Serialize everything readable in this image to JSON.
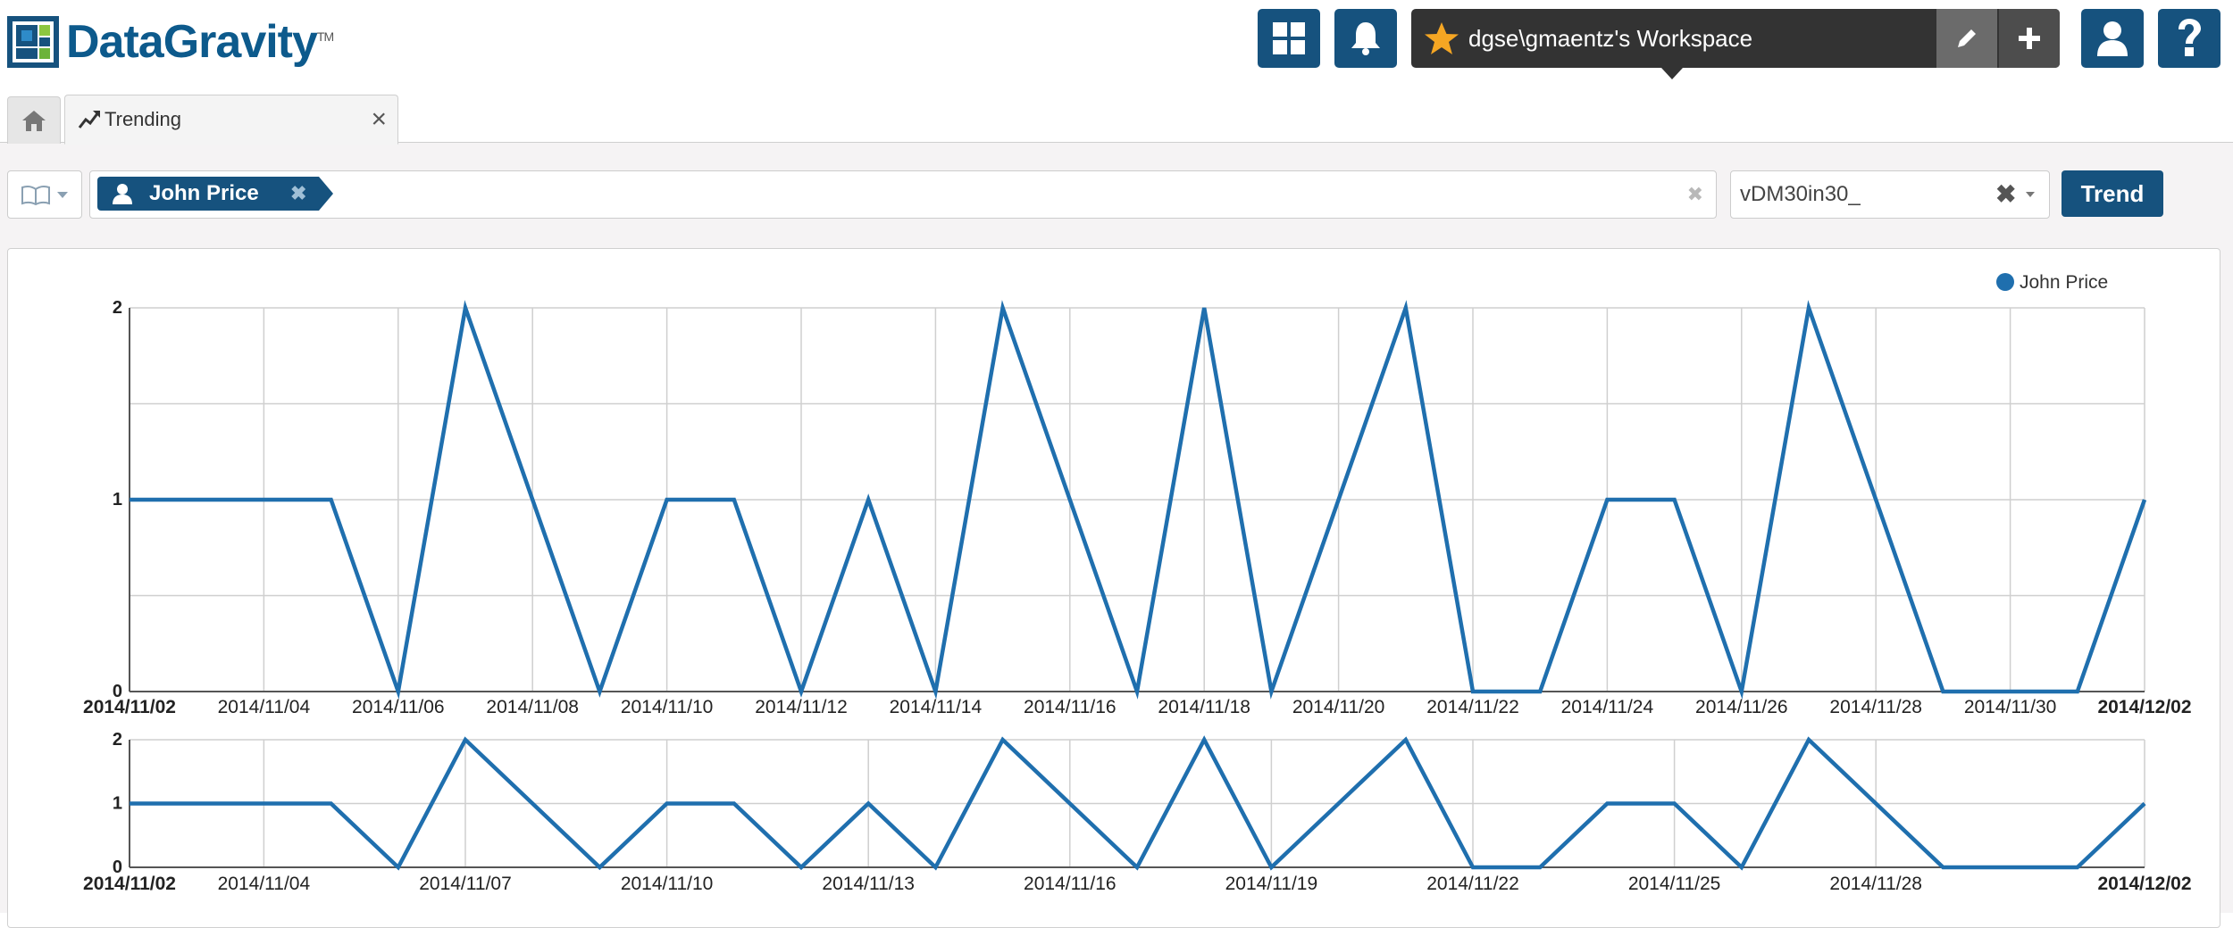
{
  "header": {
    "logo_text": "DataGravity",
    "logo_mark": "TM",
    "workspace_name": "dgse\\gmaentz's Workspace"
  },
  "icons": {
    "dashboard": "grid-icon",
    "notifications": "bell-icon",
    "favorite": "star-icon",
    "edit": "pencil-icon",
    "add": "plus-icon",
    "user": "user-icon",
    "help": "question-icon"
  },
  "tabs": [
    {
      "icon": "home-icon",
      "label": ""
    },
    {
      "icon": "trending-icon",
      "label": "Trending",
      "closable": true
    }
  ],
  "filter": {
    "chip_label": "John Price",
    "select_value": "vDM30in30_",
    "trend_button": "Trend"
  },
  "colors": {
    "brand": "#16527e",
    "series": "#1f6fae",
    "star": "#f5a623"
  },
  "chart_data": [
    {
      "type": "line",
      "legend": [
        "John Price"
      ],
      "legend_position": "top-right",
      "grid": true,
      "x": [
        "2014/11/02",
        "2014/11/03",
        "2014/11/04",
        "2014/11/05",
        "2014/11/06",
        "2014/11/07",
        "2014/11/08",
        "2014/11/09",
        "2014/11/10",
        "2014/11/11",
        "2014/11/12",
        "2014/11/13",
        "2014/11/14",
        "2014/11/15",
        "2014/11/16",
        "2014/11/17",
        "2014/11/18",
        "2014/11/19",
        "2014/11/20",
        "2014/11/21",
        "2014/11/22",
        "2014/11/23",
        "2014/11/24",
        "2014/11/25",
        "2014/11/26",
        "2014/11/27",
        "2014/11/28",
        "2014/11/29",
        "2014/11/30",
        "2014/12/01",
        "2014/12/02"
      ],
      "series": [
        {
          "name": "John Price",
          "values": [
            1,
            1,
            1,
            1,
            0,
            2,
            1,
            0,
            1,
            1,
            0,
            1,
            0,
            2,
            1,
            0,
            2,
            0,
            1,
            2,
            0,
            0,
            1,
            1,
            0,
            2,
            1,
            0,
            0,
            0,
            1
          ]
        }
      ],
      "ylim": [
        0,
        2
      ],
      "yticks": [
        "0",
        "1",
        "2"
      ],
      "xticks": [
        "2014/11/02",
        "2014/11/04",
        "2014/11/06",
        "2014/11/08",
        "2014/11/10",
        "2014/11/12",
        "2014/11/14",
        "2014/11/16",
        "2014/11/18",
        "2014/11/20",
        "2014/11/22",
        "2014/11/24",
        "2014/11/26",
        "2014/11/28",
        "2014/11/30",
        "2014/12/02"
      ],
      "bold_ticks": [
        "2014/11/02",
        "2014/12/02"
      ]
    },
    {
      "type": "line",
      "role": "overview",
      "grid": true,
      "ylim": [
        0,
        2
      ],
      "yticks": [
        "0",
        "1",
        "2"
      ],
      "xticks": [
        "2014/11/02",
        "2014/11/04",
        "2014/11/07",
        "2014/11/10",
        "2014/11/13",
        "2014/11/16",
        "2014/11/19",
        "2014/11/22",
        "2014/11/25",
        "2014/11/28",
        "2014/12/02"
      ],
      "bold_ticks": [
        "2014/11/02",
        "2014/12/02"
      ]
    }
  ]
}
